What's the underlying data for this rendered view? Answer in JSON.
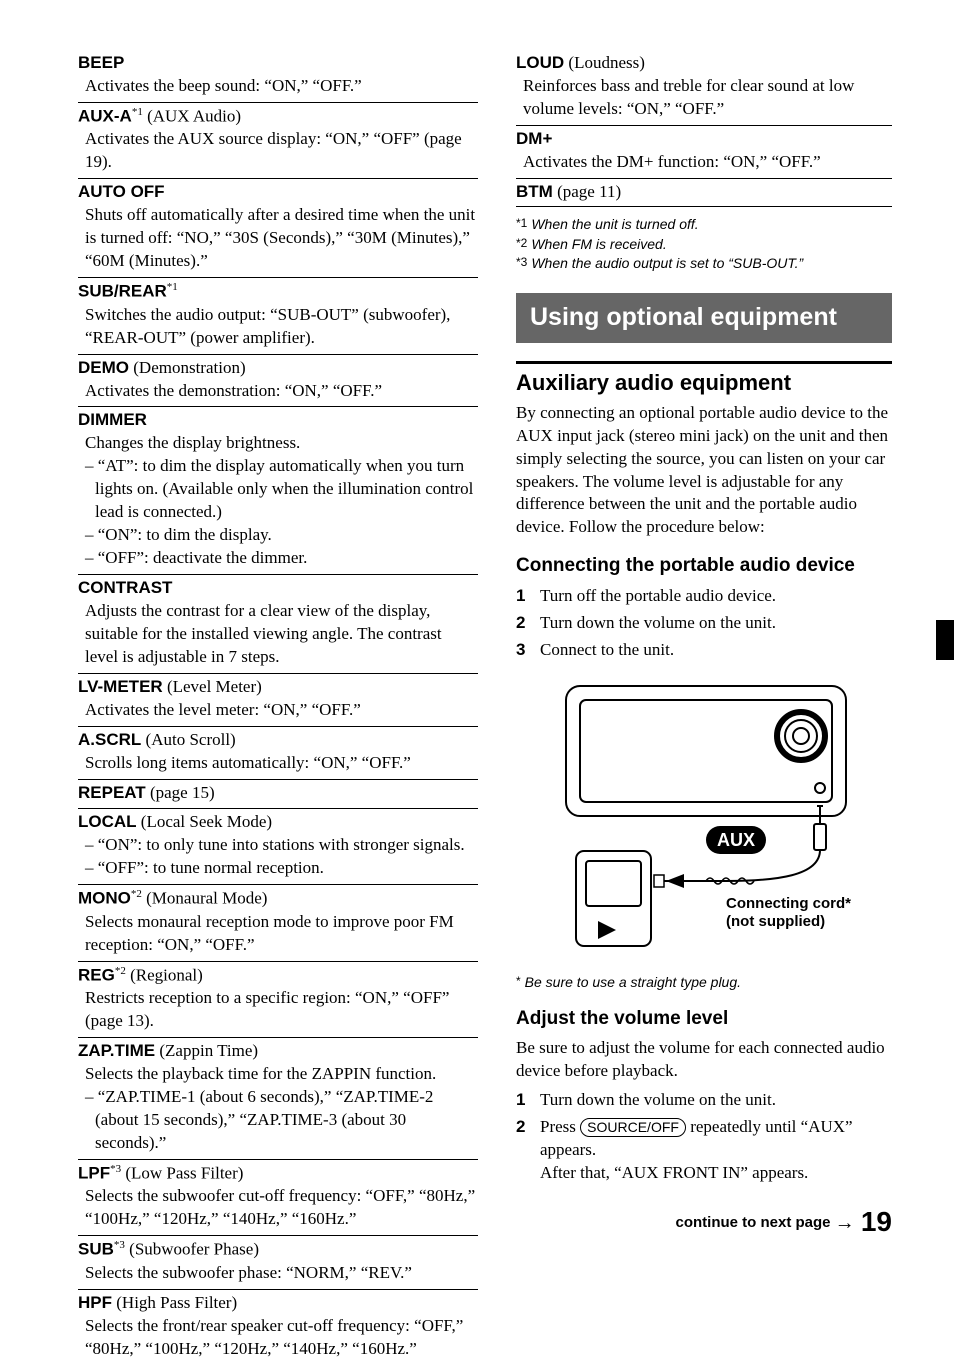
{
  "left_entries": [
    {
      "title": "BEEP",
      "body": [
        "Activates the beep sound: “ON,” “OFF.”"
      ]
    },
    {
      "title": "AUX-A",
      "sup": "*1",
      "paren": " (AUX Audio)",
      "body": [
        "Activates the AUX source display: “ON,” “OFF” (page 19)."
      ]
    },
    {
      "title": "AUTO OFF",
      "body": [
        "Shuts off automatically after a desired time when the unit is turned off: “NO,” “30S (Seconds),” “30M (Minutes),” “60M (Minutes).”"
      ]
    },
    {
      "title": "SUB/REAR",
      "sup": "*1",
      "body": [
        "Switches the audio output: “SUB-OUT” (subwoofer), “REAR-OUT” (power amplifier)."
      ]
    },
    {
      "title": "DEMO",
      "paren": " (Demonstration)",
      "body": [
        "Activates the demonstration: “ON,” “OFF.”"
      ]
    },
    {
      "title": "DIMMER",
      "body": [
        "Changes the display brightness."
      ],
      "dashes": [
        "– “AT”: to dim the display automatically when you turn lights on. (Available only when the illumination control lead is connected.)",
        "– “ON”: to dim the display.",
        "– “OFF”: deactivate the dimmer."
      ]
    },
    {
      "title": "CONTRAST",
      "body": [
        "Adjusts the contrast for a clear view of the display, suitable for the installed viewing angle. The contrast level is adjustable in 7 steps."
      ]
    },
    {
      "title": "LV-METER",
      "paren": " (Level Meter)",
      "body": [
        "Activates the level meter: “ON,” “OFF.”"
      ]
    },
    {
      "title": "A.SCRL",
      "paren": " (Auto Scroll)",
      "body": [
        "Scrolls long items automatically: “ON,” “OFF.”"
      ]
    },
    {
      "title": "REPEAT",
      "paren": " (page 15)"
    },
    {
      "title": "LOCAL",
      "paren": " (Local Seek Mode)",
      "dashes": [
        "– “ON”: to only tune into stations with stronger signals.",
        "– “OFF”: to tune normal reception."
      ]
    },
    {
      "title": "MONO",
      "sup": "*2",
      "paren": " (Monaural Mode)",
      "body": [
        "Selects monaural reception mode to improve poor FM reception: “ON,” “OFF.”"
      ]
    },
    {
      "title": "REG",
      "sup": "*2",
      "paren": " (Regional)",
      "body": [
        "Restricts reception to a specific region: “ON,” “OFF” (page 13)."
      ]
    },
    {
      "title": "ZAP.TIME",
      "paren": " (Zappin Time)",
      "body": [
        "Selects the playback time for the ZAPPIN function."
      ],
      "dashes": [
        "– “ZAP.TIME-1 (about 6 seconds),” “ZAP.TIME-2 (about 15 seconds),” “ZAP.TIME-3 (about 30 seconds).”"
      ]
    },
    {
      "title": "LPF",
      "sup": "*3",
      "paren": " (Low Pass Filter)",
      "body": [
        "Selects the subwoofer cut-off frequency: “OFF,” “80Hz,” “100Hz,” “120Hz,” “140Hz,” “160Hz.”"
      ]
    },
    {
      "title": "SUB",
      "sup": "*3",
      "paren": " (Subwoofer Phase)",
      "body": [
        "Selects the subwoofer phase: “NORM,” “REV.”"
      ]
    },
    {
      "title": "HPF",
      "paren": " (High Pass Filter)",
      "body": [
        "Selects the front/rear speaker cut-off frequency: “OFF,” “80Hz,” “100Hz,” “120Hz,” “140Hz,” “160Hz.”"
      ]
    }
  ],
  "right_top_entries": [
    {
      "title": "LOUD",
      "paren": " (Loudness)",
      "body": [
        "Reinforces bass and treble for clear sound at low volume levels: “ON,” “OFF.”"
      ]
    },
    {
      "title": "DM+",
      "body": [
        "Activates the DM+ function: “ON,” “OFF.”"
      ]
    },
    {
      "title": "BTM",
      "paren": " (page 11)",
      "bottom_border": true
    }
  ],
  "footnotes": [
    {
      "mark": "*1",
      "text": "When the unit is turned off."
    },
    {
      "mark": "*2",
      "text": "When FM is received."
    },
    {
      "mark": "*3",
      "text": "When the audio output is set to “SUB-OUT.”"
    }
  ],
  "section_title": "Using optional equipment",
  "aux_heading": "Auxiliary audio equipment",
  "aux_para": "By connecting an optional portable audio device to the AUX input jack (stereo mini jack) on the unit and then simply selecting the source, you can listen on your car speakers. The volume level is adjustable for any difference between the unit and the portable audio device. Follow the procedure below:",
  "connect_heading": "Connecting the portable audio device",
  "connect_steps": [
    "Turn off the portable audio device.",
    "Turn down the volume on the unit.",
    "Connect to the unit."
  ],
  "diagram": {
    "aux_label": "AUX",
    "cord_label_1": "Connecting cord",
    "cord_label_2": "(not supplied)"
  },
  "diagram_footnote": "Be sure to use a straight type plug.",
  "adjust_heading": "Adjust the volume level",
  "adjust_para": "Be sure to adjust the volume for each connected audio device before playback.",
  "adjust_steps": [
    {
      "text_before": "Turn down the volume on the unit."
    },
    {
      "text_before": "Press ",
      "pill": "SOURCE/OFF",
      "text_after": " repeatedly until “AUX” appears.",
      "sub": "After that, “AUX FRONT IN” appears."
    }
  ],
  "continue_text": "continue to next page ",
  "page_number": "19"
}
